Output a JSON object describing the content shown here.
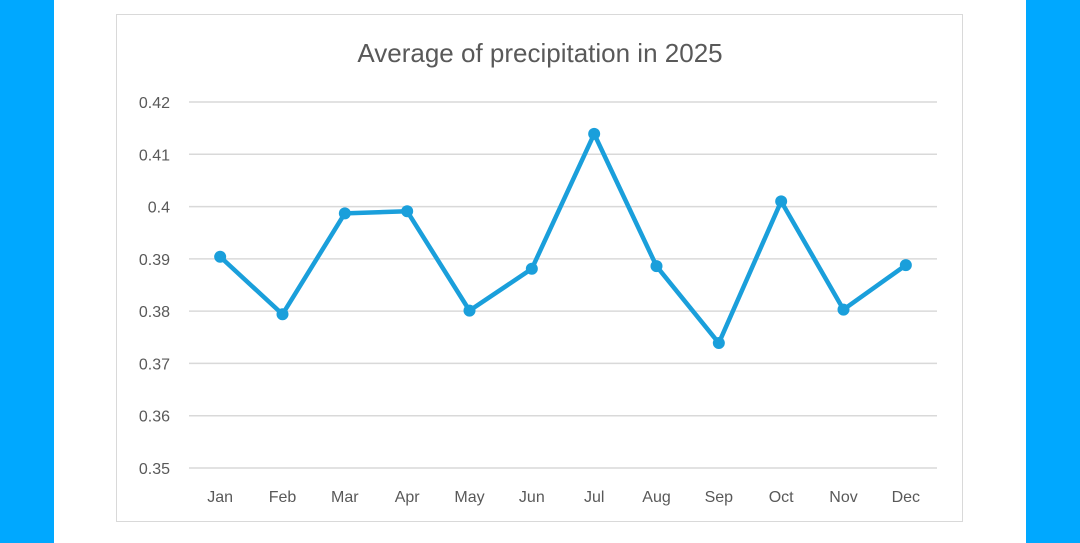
{
  "colors": {
    "background": "#00a8ff",
    "series": "#1a9fdb",
    "grid": "#d9d9d9",
    "text": "#595959"
  },
  "chart_data": {
    "type": "line",
    "title": "Average of precipitation in 2025",
    "xlabel": "",
    "ylabel": "",
    "categories": [
      "Jan",
      "Feb",
      "Mar",
      "Apr",
      "May",
      "Jun",
      "Jul",
      "Aug",
      "Sep",
      "Oct",
      "Nov",
      "Dec"
    ],
    "series": [
      {
        "name": "Average of precipitation",
        "values": [
          0.3904,
          0.3794,
          0.3987,
          0.3991,
          0.3801,
          0.3881,
          0.4139,
          0.3886,
          0.3739,
          0.401,
          0.3803,
          0.3888
        ]
      }
    ],
    "ylim": [
      0.35,
      0.42
    ],
    "yticks": [
      "0.42",
      "0.41",
      "0.4",
      "0.39",
      "0.38",
      "0.37",
      "0.36",
      "0.35"
    ],
    "grid": true,
    "legend": "none"
  }
}
